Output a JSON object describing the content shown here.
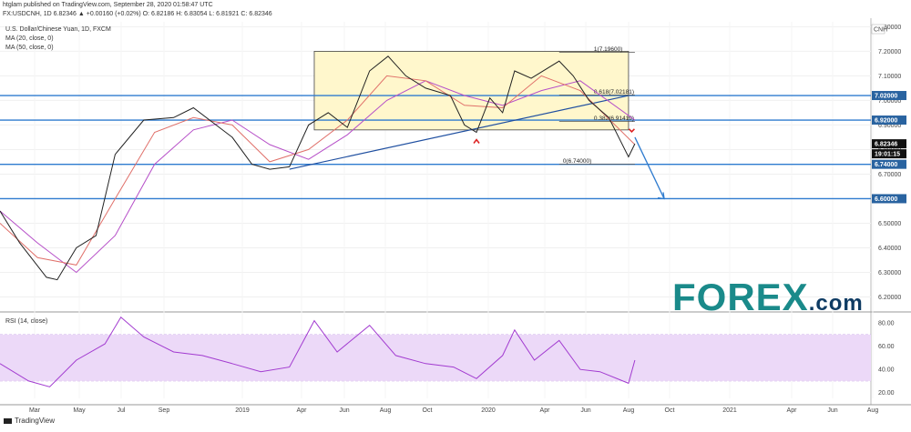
{
  "header": {
    "publisher": "htglam published on TradingView.com, September 28, 2020 01:58:47 UTC",
    "quote": "FX:USDCNH, 1D 6.82346 ▲ +0.00160 (+0.02%) O: 6.82186 H: 6.83054 L: 6.81921 C: 6.82346"
  },
  "footer": {
    "logo_text": "TradingView"
  },
  "brand": {
    "text": "FOREX",
    "suffix": ".com",
    "colors": {
      "primary": "#1a8a8a",
      "secondary": "#0e3b63"
    }
  },
  "colors": {
    "hline": "#2e7bcf",
    "badge": "#2963a0",
    "rectangle_fill": "#fff7cc",
    "ma20": "#e0706a",
    "ma50": "#b64fc8",
    "rsi": "#a23bd0",
    "rsi_band": "#ecd9f8",
    "price_badge": "#111111"
  },
  "chart_data": [
    {
      "type": "line",
      "title": "U.S. Dollar/Chinese Yuan, 1D, FXCM",
      "x_ticks": [
        "Mar",
        "May",
        "Jul",
        "Sep",
        "2019",
        "Apr",
        "Jun",
        "Aug",
        "Oct",
        "2020",
        "Apr",
        "Jun",
        "Aug",
        "Oct",
        "2021",
        "Apr",
        "Jun",
        "Aug"
      ],
      "y_ticks": [
        6.2,
        6.3,
        6.4,
        6.5,
        6.6,
        6.7,
        6.8,
        6.9,
        7.0,
        7.1,
        7.2,
        7.3
      ],
      "ylim": [
        6.15,
        7.32
      ],
      "currency_label": "CNH",
      "series": [
        {
          "name": "USDCNH",
          "x": [
            "2018-01-01",
            "2018-02-01",
            "2018-03-15",
            "2018-04-01",
            "2018-05-01",
            "2018-06-01",
            "2018-07-01",
            "2018-08-15",
            "2018-10-01",
            "2018-11-01",
            "2019-01-01",
            "2019-02-01",
            "2019-03-01",
            "2019-04-01",
            "2019-05-01",
            "2019-06-01",
            "2019-07-01",
            "2019-08-05",
            "2019-09-03",
            "2019-10-01",
            "2019-11-01",
            "2019-12-10",
            "2020-01-01",
            "2020-01-20",
            "2020-02-10",
            "2020-03-01",
            "2020-03-20",
            "2020-04-15",
            "2020-05-29",
            "2020-06-20",
            "2020-07-15",
            "2020-08-15",
            "2020-09-15",
            "2020-09-25"
          ],
          "values": [
            6.55,
            6.42,
            6.28,
            6.27,
            6.4,
            6.45,
            6.78,
            6.92,
            6.93,
            6.97,
            6.85,
            6.74,
            6.72,
            6.73,
            6.9,
            6.95,
            6.89,
            7.12,
            7.18,
            7.1,
            7.05,
            7.02,
            6.9,
            6.87,
            7.01,
            6.95,
            7.12,
            7.09,
            7.16,
            7.1,
            7.0,
            6.93,
            6.77,
            6.82346
          ]
        },
        {
          "name": "MA (20, close, 0)",
          "x": [
            "2018-01-01",
            "2018-03-01",
            "2018-05-01",
            "2018-07-01",
            "2018-09-01",
            "2018-11-01",
            "2019-01-01",
            "2019-03-01",
            "2019-05-01",
            "2019-07-01",
            "2019-09-01",
            "2019-11-01",
            "2020-01-01",
            "2020-03-01",
            "2020-05-01",
            "2020-07-01",
            "2020-09-25"
          ],
          "values": [
            6.5,
            6.36,
            6.33,
            6.6,
            6.87,
            6.93,
            6.9,
            6.75,
            6.8,
            6.92,
            7.1,
            7.08,
            6.98,
            6.97,
            7.1,
            7.04,
            6.82
          ]
        },
        {
          "name": "MA (50, close, 0)",
          "x": [
            "2018-01-01",
            "2018-03-01",
            "2018-05-01",
            "2018-07-01",
            "2018-09-01",
            "2018-11-01",
            "2019-01-01",
            "2019-03-01",
            "2019-05-01",
            "2019-07-01",
            "2019-09-01",
            "2019-11-01",
            "2020-01-01",
            "2020-03-01",
            "2020-05-01",
            "2020-07-01",
            "2020-09-25"
          ],
          "values": [
            6.55,
            6.42,
            6.3,
            6.45,
            6.74,
            6.88,
            6.92,
            6.82,
            6.76,
            6.86,
            7.0,
            7.08,
            7.02,
            6.98,
            7.04,
            7.08,
            6.92
          ]
        }
      ],
      "horizontal_lines": [
        7.02,
        6.92,
        6.74,
        6.6
      ],
      "level_badges": [
        "7.02000",
        "6.92000",
        "6.82346",
        "19:01:15",
        "6.74000",
        "6.60000"
      ],
      "fibonacci": [
        {
          "ratio": 1,
          "level": 7.196,
          "label": "1(7.19600)"
        },
        {
          "ratio": 0.618,
          "level": 7.02181,
          "label": "0.618(7.02181)"
        },
        {
          "ratio": 0.382,
          "level": 6.91419,
          "label": "0.382(6.91419)"
        },
        {
          "ratio": 0,
          "level": 6.74,
          "label": "0(6.74000)"
        }
      ]
    },
    {
      "type": "line",
      "title": "RSI (14, close)",
      "y_ticks": [
        "80.00",
        "60.00",
        "40.00",
        "20.00"
      ],
      "ylim": [
        15,
        88
      ],
      "band": [
        30,
        70
      ],
      "series": [
        {
          "name": "RSI (14, close)",
          "x": [
            "2018-01-01",
            "2018-02-15",
            "2018-03-20",
            "2018-05-01",
            "2018-06-15",
            "2018-07-10",
            "2018-08-15",
            "2018-10-01",
            "2018-11-15",
            "2019-01-01",
            "2019-02-15",
            "2019-04-01",
            "2019-05-10",
            "2019-06-15",
            "2019-08-05",
            "2019-09-15",
            "2019-11-01",
            "2019-12-15",
            "2020-01-20",
            "2020-03-01",
            "2020-03-20",
            "2020-04-20",
            "2020-05-29",
            "2020-07-01",
            "2020-08-01",
            "2020-09-15",
            "2020-09-25"
          ],
          "values": [
            45,
            30,
            25,
            48,
            62,
            85,
            68,
            55,
            52,
            45,
            38,
            42,
            82,
            55,
            78,
            52,
            45,
            42,
            32,
            52,
            74,
            48,
            65,
            40,
            38,
            28,
            48
          ]
        }
      ]
    }
  ]
}
